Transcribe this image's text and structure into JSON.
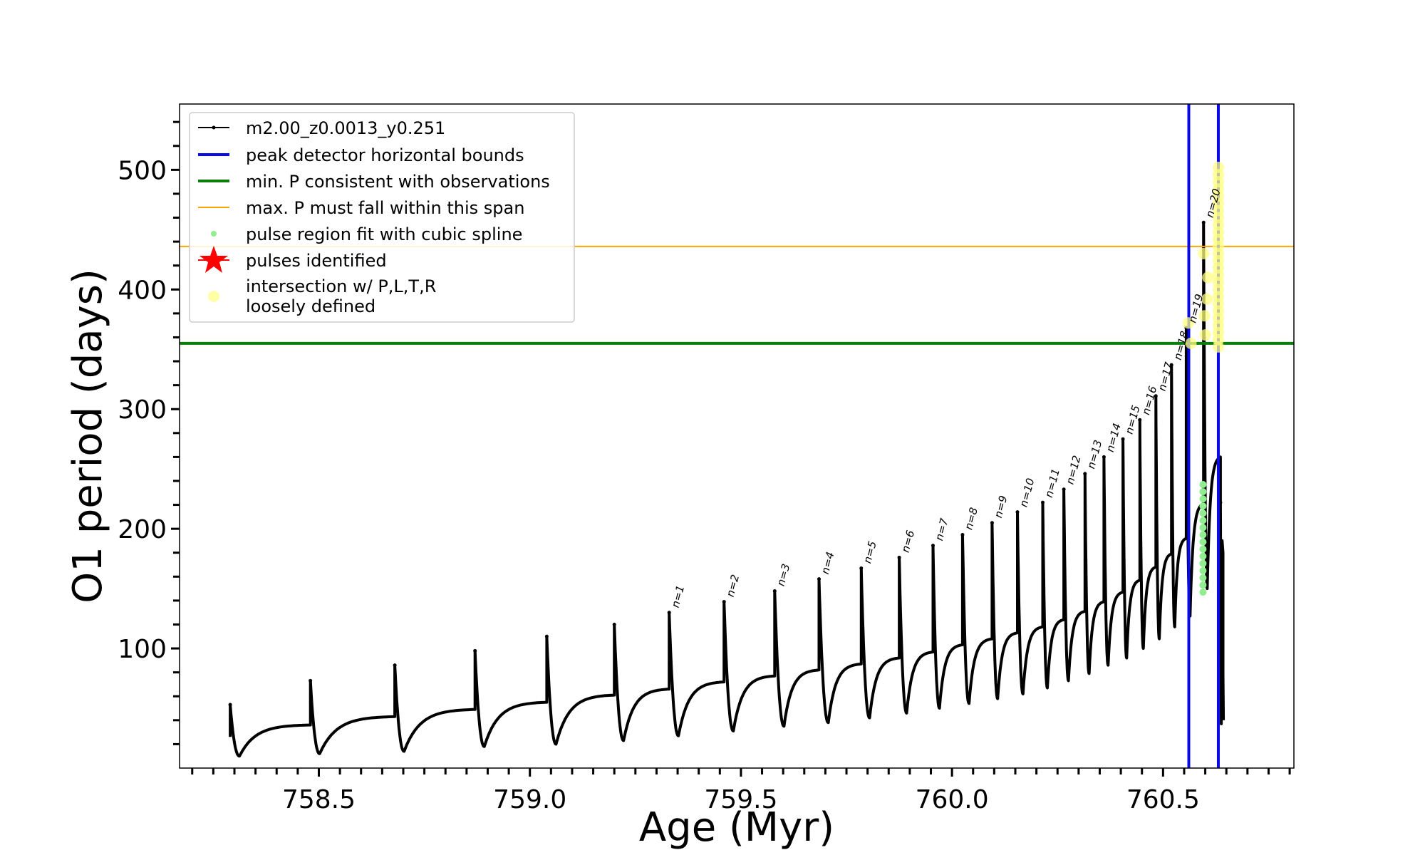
{
  "chart_data": {
    "type": "line",
    "title": "",
    "xlabel": "Age (Myr)",
    "ylabel": "O1 period (days)",
    "xlim": [
      758.17,
      760.81
    ],
    "ylim": [
      0,
      555
    ],
    "xticks": [
      758.5,
      759.0,
      759.5,
      760.0,
      760.5
    ],
    "xtick_labels": [
      "758.5",
      "759.0",
      "759.5",
      "760.0",
      "760.5"
    ],
    "yticks": [
      100,
      200,
      300,
      400,
      500
    ],
    "ytick_labels": [
      "100",
      "200",
      "300",
      "400",
      "500"
    ],
    "x_minor_step": 0.05,
    "y_minor_step": 20,
    "grid": false,
    "legend_position": "upper-left",
    "colors": {
      "series": "#000000",
      "bounds": "#0a0ae6",
      "min_p": "#0a7d0a",
      "max_p": "#ffa500",
      "spline": "#90ee90",
      "pulses": "#ff0000",
      "intersection": "#ffff80"
    },
    "series_name": "m2.00_z0.0013_y0.251",
    "legend": [
      {
        "key": "series",
        "label": "m2.00_z0.0013_y0.251"
      },
      {
        "key": "bounds",
        "label": "peak detector horizontal bounds"
      },
      {
        "key": "min_p",
        "label": "min. P consistent with observations"
      },
      {
        "key": "max_p",
        "label": "max. P must fall within this span"
      },
      {
        "key": "spline",
        "label": "pulse region fit with cubic spline"
      },
      {
        "key": "pulses",
        "label": "pulses identified"
      },
      {
        "key": "intersection",
        "label": "intersection w/ P,L,T,R",
        "label2": "loosely defined"
      }
    ],
    "hlines": {
      "min_p": 355,
      "max_p": 436
    },
    "vlines": [
      760.561,
      760.631
    ],
    "pulses": [
      {
        "x": 758.29,
        "peak": 53,
        "pre": 26,
        "min": 10,
        "label": ""
      },
      {
        "x": 758.48,
        "peak": 73,
        "pre": 36,
        "min": 12,
        "label": ""
      },
      {
        "x": 758.68,
        "peak": 86,
        "pre": 43,
        "min": 14,
        "label": ""
      },
      {
        "x": 758.87,
        "peak": 98,
        "pre": 49,
        "min": 18,
        "label": ""
      },
      {
        "x": 759.04,
        "peak": 110,
        "pre": 55,
        "min": 20,
        "label": ""
      },
      {
        "x": 759.2,
        "peak": 120,
        "pre": 61,
        "min": 23,
        "label": ""
      },
      {
        "x": 759.33,
        "peak": 130,
        "pre": 66,
        "min": 27,
        "label": "n=1"
      },
      {
        "x": 759.46,
        "peak": 139,
        "pre": 72,
        "min": 31,
        "label": "n=2"
      },
      {
        "x": 759.58,
        "peak": 148,
        "pre": 77,
        "min": 35,
        "label": "n=3"
      },
      {
        "x": 759.685,
        "peak": 158,
        "pre": 82,
        "min": 38,
        "label": "n=4"
      },
      {
        "x": 759.785,
        "peak": 167,
        "pre": 87,
        "min": 42,
        "label": "n=5"
      },
      {
        "x": 759.875,
        "peak": 176,
        "pre": 92,
        "min": 46,
        "label": "n=6"
      },
      {
        "x": 759.955,
        "peak": 186,
        "pre": 97,
        "min": 50,
        "label": "n=7"
      },
      {
        "x": 760.025,
        "peak": 195,
        "pre": 103,
        "min": 54,
        "label": "n=8"
      },
      {
        "x": 760.095,
        "peak": 205,
        "pre": 108,
        "min": 58,
        "label": "n=9"
      },
      {
        "x": 760.155,
        "peak": 214,
        "pre": 113,
        "min": 62,
        "label": "n=10"
      },
      {
        "x": 760.215,
        "peak": 222,
        "pre": 118,
        "min": 67,
        "label": "n=11"
      },
      {
        "x": 760.265,
        "peak": 233,
        "pre": 124,
        "min": 73,
        "label": "n=12"
      },
      {
        "x": 760.315,
        "peak": 246,
        "pre": 131,
        "min": 79,
        "label": "n=13"
      },
      {
        "x": 760.36,
        "peak": 260,
        "pre": 139,
        "min": 86,
        "label": "n=14"
      },
      {
        "x": 760.405,
        "peak": 275,
        "pre": 147,
        "min": 92,
        "label": "n=15"
      },
      {
        "x": 760.445,
        "peak": 291,
        "pre": 157,
        "min": 100,
        "label": "n=16"
      },
      {
        "x": 760.483,
        "peak": 311,
        "pre": 168,
        "min": 108,
        "label": "n=17"
      },
      {
        "x": 760.52,
        "peak": 337,
        "pre": 179,
        "min": 118,
        "label": "n=18"
      },
      {
        "x": 760.555,
        "peak": 368,
        "pre": 192,
        "min": 127,
        "label": "n=19"
      },
      {
        "x": 760.596,
        "peak": 456,
        "pre": 221,
        "min": 150,
        "label": "n=20"
      },
      {
        "x": 760.636,
        "peak": 222,
        "pre": 260,
        "min": 37,
        "label": ""
      }
    ],
    "final_x": 760.642,
    "final_y": 78,
    "intersection_points": [
      {
        "x": 760.56,
        "y": 372
      },
      {
        "x": 760.566,
        "y": 355
      },
      {
        "x": 760.596,
        "y": 430
      },
      {
        "x": 760.598,
        "y": 378
      },
      {
        "x": 760.6,
        "y": 362
      },
      {
        "x": 760.604,
        "y": 392
      },
      {
        "x": 760.606,
        "y": 410
      }
    ],
    "intersection_band": {
      "x": 760.631,
      "from": 352,
      "to": 503,
      "step": 6
    },
    "spline_band": {
      "x": 760.598,
      "from": 147,
      "to": 242,
      "step": 6
    }
  }
}
